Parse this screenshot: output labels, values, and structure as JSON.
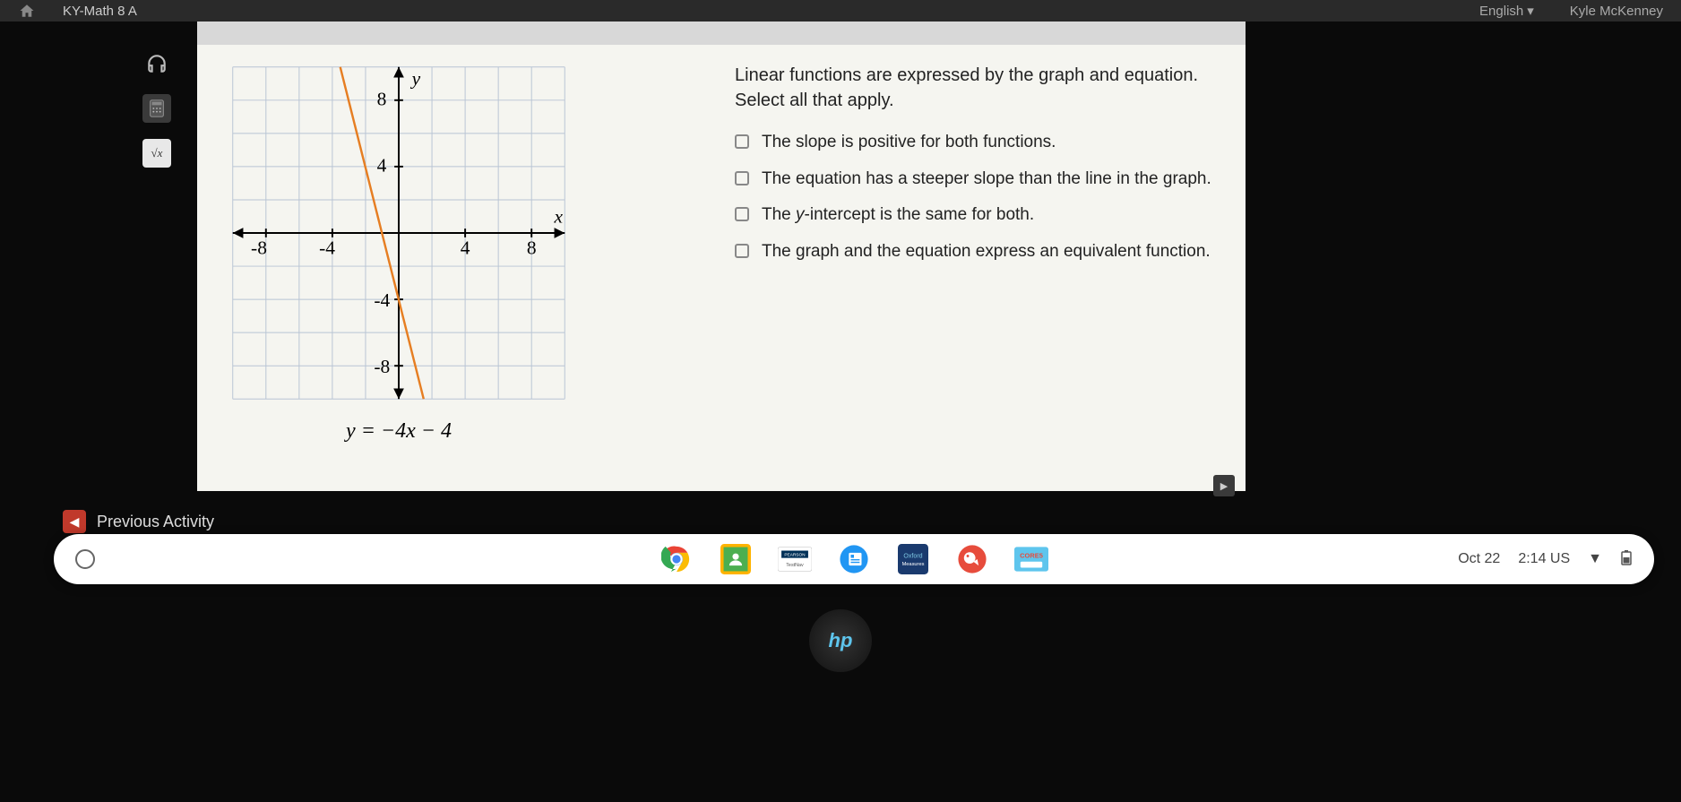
{
  "topbar": {
    "course": "KY-Math 8 A",
    "language": "English",
    "username": "Kyle McKenney"
  },
  "tools": {
    "audio": "headphones-icon",
    "calc": "calculator-icon",
    "formula": "√x"
  },
  "chart": {
    "type": "line",
    "x_axis_label": "x",
    "y_axis_label": "y",
    "xlim": [
      -10,
      10
    ],
    "ylim": [
      -10,
      10
    ],
    "major_tick": 4,
    "minor_tick": 2,
    "x_tick_labels": [
      "-8",
      "-4",
      "4",
      "8"
    ],
    "y_tick_labels": [
      "8",
      "4",
      "-4",
      "-8"
    ],
    "grid_color": "#b8c4d4",
    "axis_color": "#000000",
    "background_color": "#f5f5f0",
    "line": {
      "slope": -4,
      "intercept": -4,
      "color": "#e67e22",
      "width": 2.5,
      "points": [
        {
          "x": -3.5,
          "y": 10
        },
        {
          "x": 1.5,
          "y": -10
        }
      ]
    },
    "equation_display": "y = −4x − 4"
  },
  "question": {
    "prompt": "Linear functions are expressed by the graph and equation. Select all that apply.",
    "options": [
      {
        "html": "The slope is positive for both functions."
      },
      {
        "html": "The equation has a steeper slope than the line in the graph."
      },
      {
        "html": "The <i>y</i>-intercept is the same for both."
      },
      {
        "html": "The graph and the equation express an equivalent function."
      }
    ]
  },
  "nav": {
    "previous": "Previous Activity"
  },
  "taskbar": {
    "apps": [
      {
        "name": "chrome",
        "bg": "#ffffff"
      },
      {
        "name": "classroom",
        "bg": "#4caf50"
      },
      {
        "name": "pearson",
        "bg": "#ffffff"
      },
      {
        "name": "app-blue",
        "bg": "#2196f3"
      },
      {
        "name": "app-navy",
        "bg": "#1a3a6e"
      },
      {
        "name": "app-red",
        "bg": "#e74c3c"
      },
      {
        "name": "core5",
        "bg": "#ffffff"
      }
    ],
    "date": "Oct 22",
    "time": "2:14",
    "locale": "US"
  },
  "logo": "hp"
}
